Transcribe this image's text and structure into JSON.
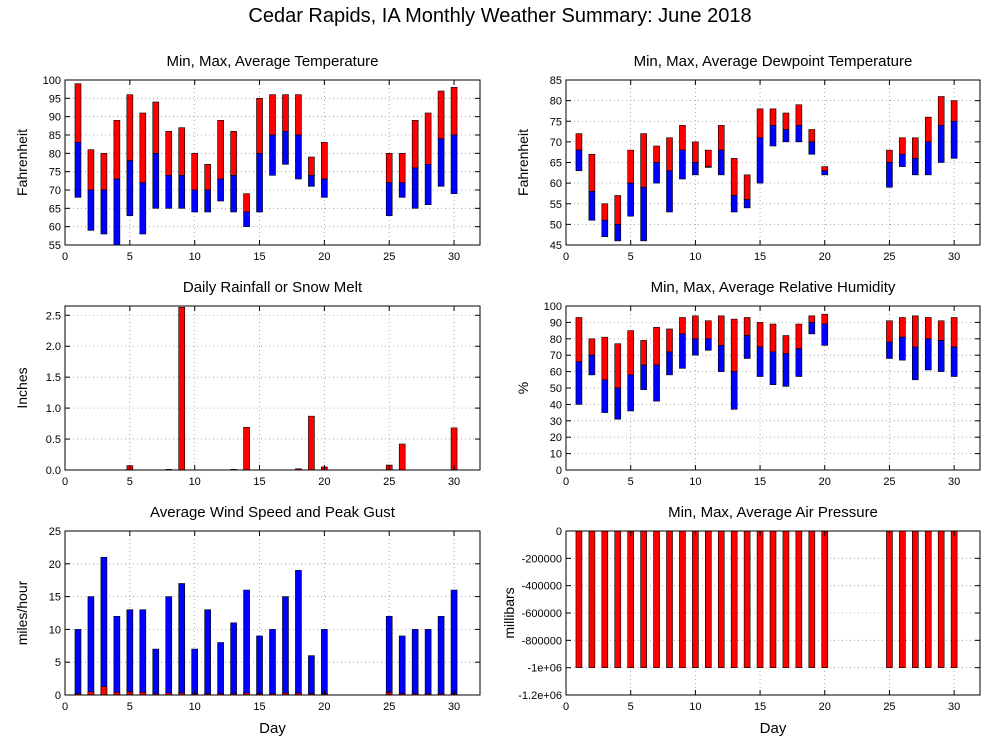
{
  "title": "Cedar Rapids, IA Monthly Weather Summary: June 2018",
  "colors": {
    "red": "#ff0000",
    "blue": "#0000ff",
    "grid": "#999999",
    "axis": "#000000"
  },
  "chart_data": [
    {
      "id": "temp",
      "type": "bar",
      "title": "Min, Max, Average Temperature",
      "xlabel": "",
      "ylabel": "Fahrenheit",
      "xlim": [
        0,
        32
      ],
      "xticks": [
        0,
        5,
        10,
        15,
        20,
        25,
        30
      ],
      "ylim": [
        55,
        100
      ],
      "yticks": [
        55,
        60,
        65,
        70,
        75,
        80,
        85,
        90,
        95,
        100
      ],
      "grid": true,
      "days": [
        1,
        2,
        3,
        4,
        5,
        6,
        7,
        8,
        9,
        10,
        11,
        12,
        13,
        14,
        15,
        16,
        17,
        18,
        19,
        20,
        25,
        26,
        27,
        28,
        29,
        30
      ],
      "min": [
        68,
        59,
        58,
        55,
        63,
        58,
        65,
        65,
        65,
        64,
        64,
        67,
        64,
        60,
        64,
        74,
        77,
        73,
        71,
        68,
        63,
        68,
        65,
        66,
        71,
        69
      ],
      "avg": [
        83,
        70,
        70,
        73,
        78,
        72,
        80,
        74,
        74,
        70,
        70,
        73,
        74,
        64,
        80,
        85,
        86,
        85,
        74,
        73,
        72,
        72,
        76,
        77,
        84,
        85
      ],
      "max": [
        99,
        81,
        80,
        89,
        96,
        91,
        94,
        86,
        87,
        80,
        77,
        89,
        86,
        69,
        95,
        96,
        96,
        96,
        79,
        83,
        80,
        80,
        89,
        91,
        97,
        98
      ]
    },
    {
      "id": "dew",
      "type": "bar",
      "title": "Min, Max, Average Dewpoint Temperature",
      "xlabel": "",
      "ylabel": "Fahrenheit",
      "xlim": [
        0,
        32
      ],
      "xticks": [
        0,
        5,
        10,
        15,
        20,
        25,
        30
      ],
      "ylim": [
        45,
        85
      ],
      "yticks": [
        45,
        50,
        55,
        60,
        65,
        70,
        75,
        80,
        85
      ],
      "grid": true,
      "days": [
        1,
        2,
        3,
        4,
        5,
        6,
        7,
        8,
        9,
        10,
        11,
        12,
        13,
        14,
        15,
        16,
        17,
        18,
        19,
        20,
        25,
        26,
        27,
        28,
        29,
        30
      ],
      "min": [
        63,
        51,
        47,
        46,
        52,
        46,
        60,
        53,
        61,
        62,
        64,
        62,
        53,
        54,
        60,
        69,
        70,
        70,
        67,
        62,
        59,
        64,
        62,
        62,
        65,
        66
      ],
      "avg": [
        68,
        58,
        51,
        50,
        60,
        59,
        65,
        63,
        68,
        65,
        64,
        68,
        57,
        56,
        71,
        74,
        73,
        74,
        70,
        63,
        65,
        67,
        66,
        70,
        74,
        75
      ],
      "max": [
        72,
        67,
        55,
        57,
        68,
        72,
        69,
        71,
        74,
        70,
        68,
        74,
        66,
        62,
        78,
        78,
        77,
        79,
        73,
        64,
        68,
        71,
        71,
        76,
        81,
        80
      ]
    },
    {
      "id": "rain",
      "type": "bar",
      "title": "Daily Rainfall or Snow Melt",
      "xlabel": "",
      "ylabel": "Inches",
      "xlim": [
        0,
        32
      ],
      "xticks": [
        0,
        5,
        10,
        15,
        20,
        25,
        30
      ],
      "ylim": [
        0,
        2.65
      ],
      "yticks": [
        0,
        0.5,
        1.0,
        1.5,
        2.0,
        2.5
      ],
      "ytick_labels": [
        "0.0",
        "0.5",
        "1.0",
        "1.5",
        "2.0",
        "2.5"
      ],
      "grid": true,
      "days": [
        5,
        8,
        9,
        13,
        14,
        18,
        19,
        20,
        25,
        26,
        30
      ],
      "values": [
        0.07,
        0.01,
        2.63,
        0.01,
        0.69,
        0.02,
        0.87,
        0.05,
        0.08,
        0.42,
        0.68
      ]
    },
    {
      "id": "rh",
      "type": "bar",
      "title": "Min, Max, Average Relative Humidity",
      "xlabel": "",
      "ylabel": "%",
      "xlim": [
        0,
        32
      ],
      "xticks": [
        0,
        5,
        10,
        15,
        20,
        25,
        30
      ],
      "ylim": [
        0,
        100
      ],
      "yticks": [
        0,
        10,
        20,
        30,
        40,
        50,
        60,
        70,
        80,
        90,
        100
      ],
      "grid": true,
      "days": [
        1,
        2,
        3,
        4,
        5,
        6,
        7,
        8,
        9,
        10,
        11,
        12,
        13,
        14,
        15,
        16,
        17,
        18,
        19,
        20,
        25,
        26,
        27,
        28,
        29,
        30
      ],
      "min": [
        40,
        58,
        35,
        31,
        36,
        49,
        42,
        58,
        62,
        70,
        73,
        60,
        37,
        68,
        57,
        52,
        51,
        57,
        83,
        76,
        68,
        67,
        55,
        61,
        60,
        57
      ],
      "avg": [
        66,
        70,
        55,
        50,
        58,
        64,
        64,
        72,
        83,
        80,
        80,
        76,
        60,
        82,
        75,
        72,
        71,
        74,
        90,
        89,
        78,
        81,
        75,
        80,
        79,
        75
      ],
      "max": [
        93,
        80,
        81,
        77,
        85,
        79,
        87,
        86,
        93,
        94,
        91,
        94,
        92,
        93,
        90,
        89,
        82,
        89,
        94,
        95,
        91,
        93,
        94,
        93,
        91,
        93
      ]
    },
    {
      "id": "wind",
      "type": "bar",
      "title": "Average Wind Speed and Peak Gust",
      "xlabel": "Day",
      "ylabel": "miles/hour",
      "xlim": [
        0,
        32
      ],
      "xticks": [
        0,
        5,
        10,
        15,
        20,
        25,
        30
      ],
      "ylim": [
        0,
        25
      ],
      "yticks": [
        0,
        5,
        10,
        15,
        20,
        25
      ],
      "grid": true,
      "days": [
        1,
        2,
        3,
        4,
        5,
        6,
        7,
        8,
        9,
        10,
        11,
        12,
        13,
        14,
        15,
        16,
        17,
        18,
        19,
        20,
        25,
        26,
        27,
        28,
        29,
        30
      ],
      "avg": [
        0.2,
        0.5,
        1.3,
        0.4,
        0.5,
        0.4,
        0.2,
        0.3,
        0.3,
        0.2,
        0.2,
        0.2,
        0.2,
        0.3,
        0.2,
        0.2,
        0.3,
        0.3,
        0.2,
        0.2,
        0.4,
        0.2,
        0.2,
        0.2,
        0.2,
        0.2
      ],
      "gust": [
        10,
        15,
        21,
        12,
        13,
        13,
        7,
        15,
        17,
        7,
        13,
        8,
        11,
        16,
        9,
        10,
        15,
        19,
        6,
        10,
        12,
        9,
        10,
        10,
        12,
        16
      ]
    },
    {
      "id": "pres",
      "type": "bar",
      "title": "Min, Max, Average Air Pressure",
      "xlabel": "Day",
      "ylabel": "millibars",
      "xlim": [
        0,
        32
      ],
      "xticks": [
        0,
        5,
        10,
        15,
        20,
        25,
        30
      ],
      "ylim": [
        -1200000,
        0
      ],
      "yticks": [
        0,
        -200000,
        -400000,
        -600000,
        -800000,
        -1000000,
        -1200000
      ],
      "ytick_labels": [
        "0",
        "-200000",
        "-400000",
        "-600000",
        "-800000",
        "-1e+06",
        "-1.2e+06"
      ],
      "grid": true,
      "days": [
        1,
        2,
        3,
        4,
        5,
        6,
        7,
        8,
        9,
        10,
        11,
        12,
        13,
        14,
        15,
        16,
        17,
        18,
        19,
        20,
        25,
        26,
        27,
        28,
        29,
        30
      ],
      "min": [
        -1000000,
        -1000000,
        -1000000,
        -1000000,
        -1000000,
        -1000000,
        -1000000,
        -1000000,
        -1000000,
        -1000000,
        -1000000,
        -1000000,
        -1000000,
        -1000000,
        -1000000,
        -1000000,
        -1000000,
        -1000000,
        -1000000,
        -1000000,
        -1000000,
        -1000000,
        -1000000,
        -1000000,
        -1000000,
        -1000000
      ],
      "max": [
        0,
        0,
        0,
        0,
        0,
        0,
        0,
        0,
        0,
        0,
        0,
        0,
        0,
        0,
        0,
        0,
        0,
        0,
        0,
        0,
        0,
        0,
        0,
        0,
        0,
        0
      ]
    }
  ]
}
